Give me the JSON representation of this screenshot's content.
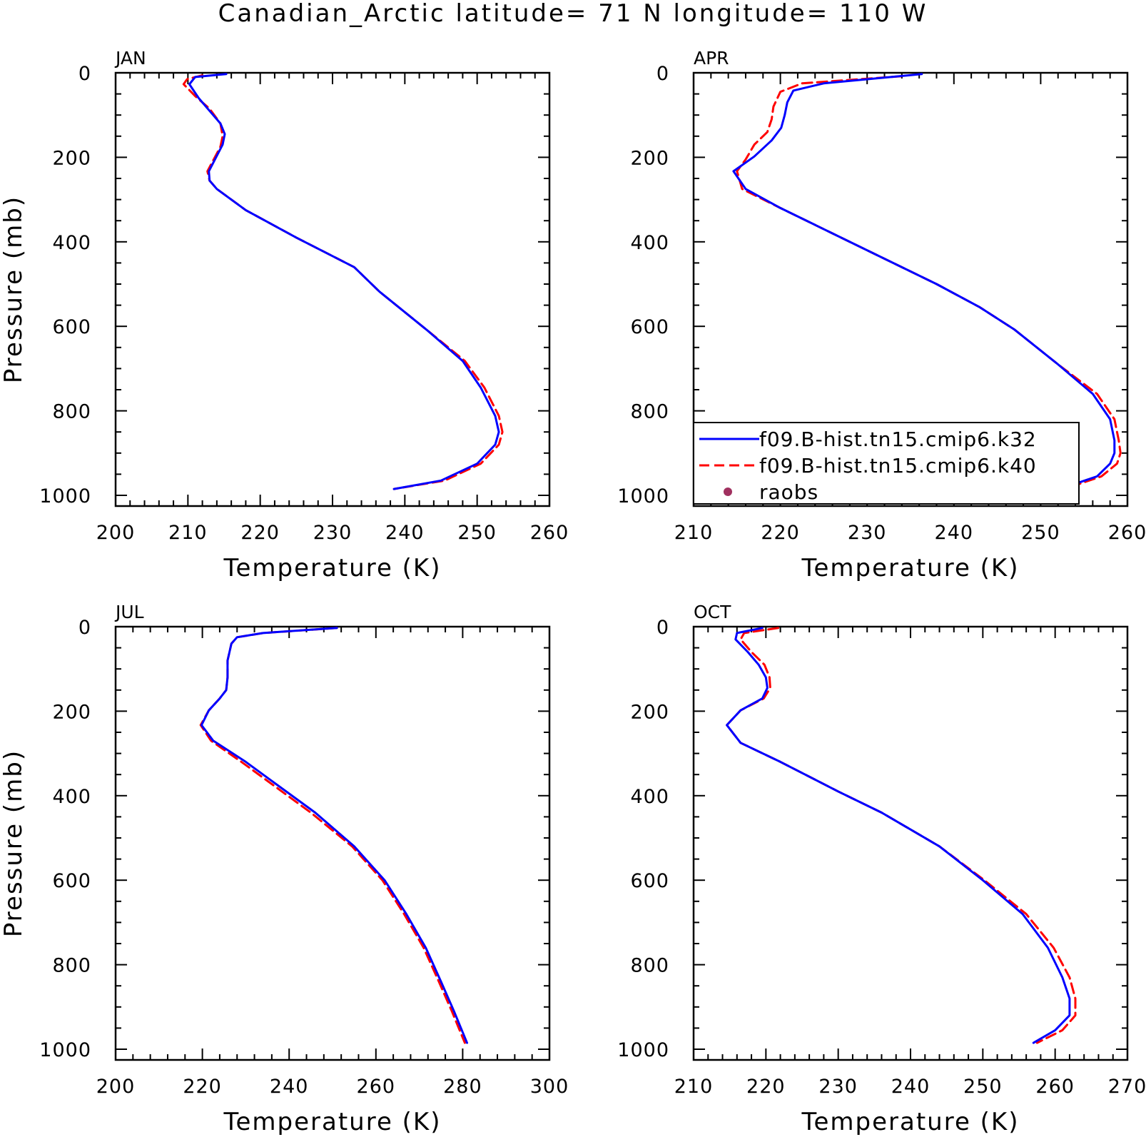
{
  "figure": {
    "title": "Canadian_Arctic  latitude= 71 N longitude= 110 W"
  },
  "legend": {
    "entries": [
      {
        "label": "f09.B-hist.tn15.cmip6.k32",
        "color": "#0000ff",
        "style": "solid"
      },
      {
        "label": "f09.B-hist.tn15.cmip6.k40",
        "color": "#ff0000",
        "style": "dashed"
      },
      {
        "label": "raobs",
        "color": "#a0305f",
        "style": "marker"
      }
    ],
    "placement": "inside APR panel, lower-left"
  },
  "chart_data": [
    {
      "type": "line",
      "title": "JAN",
      "xlabel": "Temperature (K)",
      "ylabel": "Pressure (mb)",
      "xlim": [
        200,
        260
      ],
      "ylim": [
        1025,
        0
      ],
      "y_inverted": true,
      "xticks": [
        200,
        210,
        220,
        230,
        240,
        250,
        260
      ],
      "yticks": [
        0,
        200,
        400,
        600,
        800,
        1000
      ],
      "series": [
        {
          "name": "f09.B-hist.tn15.cmip6.k32",
          "color": "#0000ff",
          "style": "solid",
          "x": [
            215.3,
            211.0,
            210.2,
            211.5,
            213.0,
            214.5,
            215.1,
            214.8,
            212.9,
            213.0,
            214.0,
            218.0,
            225.0,
            233.0,
            236.5,
            243.0,
            248.0,
            250.5,
            252.5,
            253.0,
            252.5,
            250.0,
            245.0,
            238.5
          ],
          "y": [
            3,
            10,
            27,
            60,
            90,
            120,
            145,
            170,
            233,
            255,
            275,
            325,
            390,
            460,
            518,
            608,
            682,
            745,
            812,
            850,
            880,
            925,
            965,
            985
          ]
        },
        {
          "name": "f09.B-hist.tn15.cmip6.k40",
          "color": "#ff0000",
          "style": "dashed",
          "x": [
            212.0,
            209.9,
            209.4,
            211.0,
            213.0,
            214.5,
            214.8,
            214.5,
            212.7,
            213.0,
            214.0,
            218.0,
            225.0,
            233.0,
            236.5,
            243.0,
            248.3,
            251.0,
            253.0,
            253.5,
            253.0,
            250.5,
            245.5,
            238.5
          ],
          "y": [
            6,
            15,
            27,
            55,
            85,
            120,
            150,
            175,
            233,
            255,
            275,
            325,
            390,
            460,
            518,
            608,
            682,
            745,
            812,
            850,
            880,
            925,
            965,
            985
          ]
        }
      ]
    },
    {
      "type": "line",
      "title": "APR",
      "xlabel": "Temperature (K)",
      "ylabel": "",
      "xlim": [
        210,
        260
      ],
      "ylim": [
        1025,
        0
      ],
      "y_inverted": true,
      "xticks": [
        210,
        220,
        230,
        240,
        250,
        260
      ],
      "yticks": [
        0,
        200,
        400,
        600,
        800,
        1000
      ],
      "series": [
        {
          "name": "f09.B-hist.tn15.cmip6.k32",
          "color": "#0000ff",
          "style": "solid",
          "x": [
            236.3,
            225.0,
            221.5,
            220.8,
            220.5,
            220.1,
            219.0,
            217.0,
            214.6,
            216.0,
            220.0,
            226.0,
            232.0,
            238.0,
            243.0,
            247.0,
            252.0,
            256.0,
            258.0,
            258.5,
            258.5,
            258.0,
            256.5,
            251.5
          ],
          "y": [
            3,
            25,
            42,
            70,
            100,
            130,
            160,
            198,
            233,
            275,
            320,
            380,
            440,
            500,
            555,
            608,
            690,
            760,
            820,
            870,
            900,
            925,
            955,
            990
          ]
        },
        {
          "name": "f09.B-hist.tn15.cmip6.k40",
          "color": "#ff0000",
          "style": "dashed",
          "x": [
            234.0,
            222.5,
            220.0,
            219.2,
            219.0,
            218.5,
            217.0,
            216.0,
            215.0,
            215.6,
            220.0,
            226.0,
            232.0,
            238.0,
            243.0,
            247.0,
            252.0,
            256.5,
            258.5,
            259.0,
            259.2,
            258.8,
            257.0,
            252.0
          ],
          "y": [
            8,
            25,
            45,
            80,
            110,
            140,
            170,
            205,
            233,
            275,
            320,
            380,
            440,
            500,
            555,
            608,
            690,
            760,
            820,
            870,
            900,
            925,
            955,
            990
          ]
        }
      ]
    },
    {
      "type": "line",
      "title": "JUL",
      "xlabel": "Temperature (K)",
      "ylabel": "Pressure (mb)",
      "xlim": [
        200,
        300
      ],
      "ylim": [
        1025,
        0
      ],
      "y_inverted": true,
      "xticks": [
        200,
        220,
        240,
        260,
        280,
        300
      ],
      "yticks": [
        0,
        200,
        400,
        600,
        800,
        1000
      ],
      "series": [
        {
          "name": "f09.B-hist.tn15.cmip6.k32",
          "color": "#0000ff",
          "style": "solid",
          "x": [
            251.0,
            234.0,
            228.0,
            226.7,
            225.8,
            225.8,
            225.5,
            224.0,
            221.5,
            219.8,
            222.5,
            230.0,
            238.0,
            246.0,
            255.0,
            262.0,
            267.0,
            271.5,
            275.0,
            278.0,
            281.0
          ],
          "y": [
            3,
            15,
            25,
            40,
            80,
            120,
            150,
            170,
            198,
            233,
            270,
            320,
            380,
            440,
            520,
            600,
            680,
            760,
            840,
            910,
            985
          ]
        },
        {
          "name": "f09.B-hist.tn15.cmip6.k40",
          "color": "#ff0000",
          "style": "dashed",
          "x": [
            251.0,
            234.0,
            228.0,
            226.7,
            225.8,
            225.8,
            225.5,
            224.0,
            221.5,
            219.6,
            222.0,
            229.0,
            237.0,
            245.0,
            254.5,
            261.5,
            266.5,
            271.0,
            274.5,
            277.5,
            280.5
          ],
          "y": [
            3,
            15,
            25,
            40,
            80,
            120,
            150,
            170,
            198,
            233,
            270,
            320,
            380,
            440,
            520,
            600,
            680,
            760,
            840,
            910,
            985
          ]
        }
      ]
    },
    {
      "type": "line",
      "title": "OCT",
      "xlabel": "Temperature (K)",
      "ylabel": "",
      "xlim": [
        210,
        270
      ],
      "ylim": [
        1025,
        0
      ],
      "y_inverted": true,
      "xticks": [
        210,
        220,
        230,
        240,
        250,
        260,
        270
      ],
      "yticks": [
        0,
        200,
        400,
        600,
        800,
        1000
      ],
      "series": [
        {
          "name": "f09.B-hist.tn15.cmip6.k32",
          "color": "#0000ff",
          "style": "solid",
          "x": [
            219.5,
            216.0,
            215.8,
            217.5,
            219.0,
            220.0,
            220.2,
            219.5,
            216.5,
            214.6,
            216.5,
            222.0,
            230.0,
            236.0,
            244.0,
            250.0,
            255.5,
            259.0,
            261.0,
            262.0,
            262.0,
            260.0,
            257.0
          ],
          "y": [
            3,
            15,
            30,
            60,
            90,
            120,
            145,
            170,
            198,
            233,
            275,
            320,
            390,
            440,
            520,
            600,
            680,
            760,
            830,
            880,
            920,
            955,
            985
          ]
        },
        {
          "name": "f09.B-hist.tn15.cmip6.k40",
          "color": "#ff0000",
          "style": "dashed",
          "x": [
            221.7,
            217.0,
            216.5,
            218.0,
            219.8,
            220.5,
            220.6,
            219.7,
            216.5,
            214.6,
            216.5,
            222.0,
            230.0,
            236.0,
            244.0,
            250.2,
            256.0,
            259.8,
            262.0,
            262.8,
            262.8,
            261.0,
            257.5
          ],
          "y": [
            3,
            15,
            30,
            60,
            90,
            120,
            145,
            170,
            198,
            233,
            275,
            320,
            390,
            440,
            520,
            600,
            680,
            760,
            830,
            880,
            920,
            955,
            985
          ]
        }
      ]
    }
  ]
}
